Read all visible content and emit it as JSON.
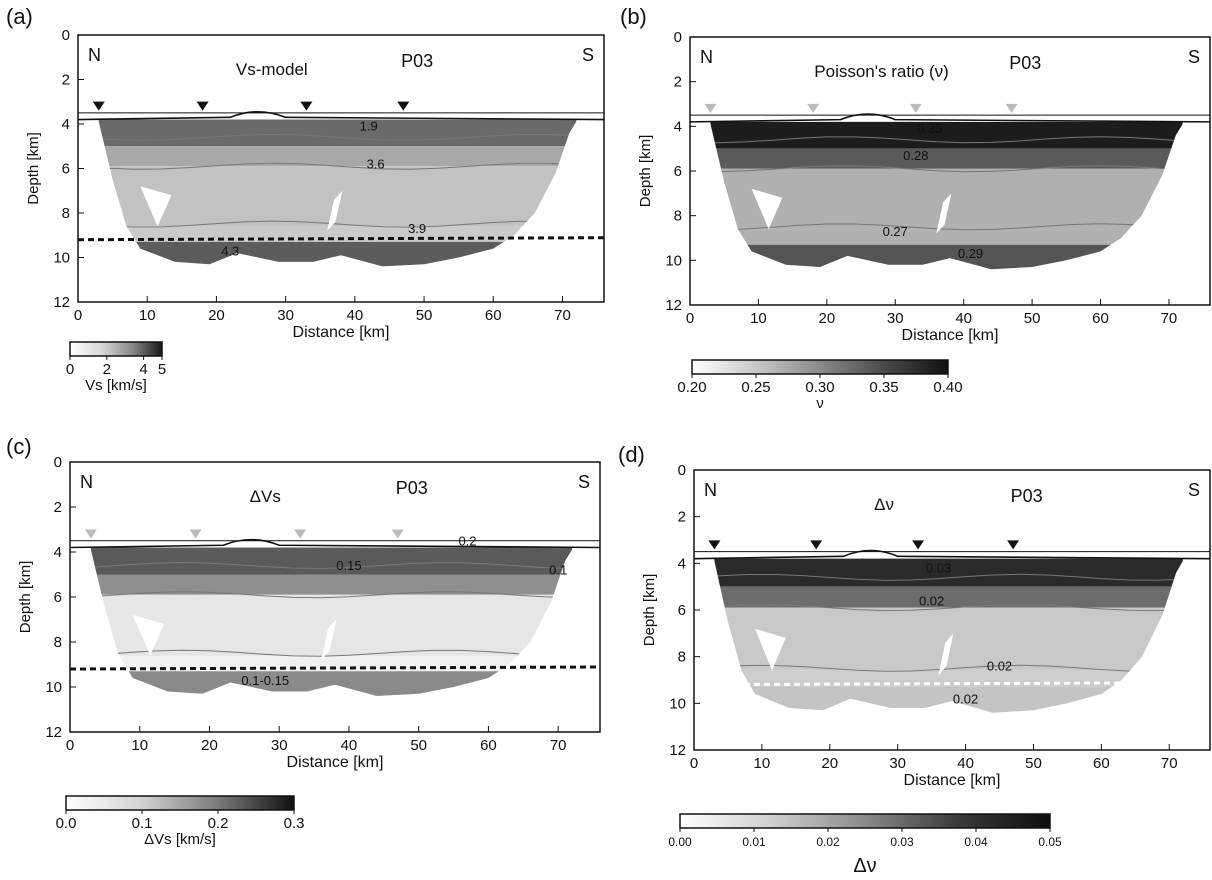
{
  "panels": [
    {
      "letter": "(a)",
      "title": "Vs-model",
      "profile": "P03",
      "north": "N",
      "south": "S",
      "xlabel": "Distance [km]",
      "ylabel": "Depth [km]",
      "xticks": [
        "0",
        "10",
        "20",
        "30",
        "40",
        "50",
        "60",
        "70"
      ],
      "yticks": [
        "0",
        "2",
        "4",
        "6",
        "8",
        "10",
        "12"
      ],
      "contours": [
        {
          "label": "1.9",
          "depth": 4.3,
          "dist": 42
        },
        {
          "label": "3.6",
          "depth": 6.0,
          "dist": 43
        },
        {
          "label": "3.9",
          "depth": 8.9,
          "dist": 49
        },
        {
          "label": "4.3",
          "depth": 9.9,
          "dist": 22
        }
      ],
      "boundary_depth": 9.2,
      "boundary_color": "#111111",
      "station_color": "#111111",
      "stations_km": [
        3,
        18,
        33,
        47
      ],
      "colorbar": {
        "label": "Vs [km/s]",
        "ticks": [
          "0",
          "2",
          "4",
          "5"
        ],
        "range": [
          0,
          5
        ]
      }
    },
    {
      "letter": "(b)",
      "title": "Poisson's ratio (ν)",
      "profile": "P03",
      "north": "N",
      "south": "S",
      "xlabel": "Distance [km]",
      "ylabel": "Depth [km]",
      "xticks": [
        "0",
        "10",
        "20",
        "30",
        "40",
        "50",
        "60",
        "70"
      ],
      "yticks": [
        "0",
        "2",
        "4",
        "6",
        "8",
        "10",
        "12"
      ],
      "contours": [
        {
          "label": "0.35",
          "depth": 4.3,
          "dist": 35
        },
        {
          "label": "0.28",
          "depth": 5.5,
          "dist": 33
        },
        {
          "label": "0.27",
          "depth": 8.9,
          "dist": 30
        },
        {
          "label": "0.29",
          "depth": 9.9,
          "dist": 41
        }
      ],
      "boundary_depth": null,
      "station_color": "#bbbbbb",
      "stations_km": [
        3,
        18,
        33,
        47
      ],
      "colorbar": {
        "label": "ν",
        "ticks": [
          "0.20",
          "0.25",
          "0.30",
          "0.35",
          "0.40"
        ],
        "range": [
          0.2,
          0.4
        ]
      }
    },
    {
      "letter": "(c)",
      "title": "ΔVs",
      "profile": "P03",
      "north": "N",
      "south": "S",
      "xlabel": "Distance [km]",
      "ylabel": "Depth [km]",
      "xticks": [
        "0",
        "10",
        "20",
        "30",
        "40",
        "50",
        "60",
        "70"
      ],
      "yticks": [
        "0",
        "2",
        "4",
        "6",
        "8",
        "10",
        "12"
      ],
      "contours": [
        {
          "label": "0.2",
          "depth": 3.7,
          "dist": 57
        },
        {
          "label": "0.15",
          "depth": 4.8,
          "dist": 40
        },
        {
          "label": "0.1",
          "depth": 5.0,
          "dist": 70
        },
        {
          "label": "0.1-0.15",
          "depth": 9.9,
          "dist": 28
        }
      ],
      "boundary_depth": 9.2,
      "boundary_color": "#111111",
      "station_color": "#bbbbbb",
      "stations_km": [
        3,
        18,
        33,
        47
      ],
      "colorbar": {
        "label": "ΔVs [km/s]",
        "ticks": [
          "0.0",
          "0.1",
          "0.2",
          "0.3"
        ],
        "range": [
          0,
          0.3
        ]
      }
    },
    {
      "letter": "(d)",
      "title": "Δν",
      "profile": "P03",
      "north": "N",
      "south": "S",
      "xlabel": "Distance [km]",
      "ylabel": "Depth [km]",
      "xticks": [
        "0",
        "10",
        "20",
        "30",
        "40",
        "50",
        "60",
        "70"
      ],
      "yticks": [
        "0",
        "2",
        "4",
        "6",
        "8",
        "10",
        "12"
      ],
      "contours": [
        {
          "label": "0.03",
          "depth": 4.4,
          "dist": 36
        },
        {
          "label": "0.02",
          "depth": 5.8,
          "dist": 35
        },
        {
          "label": "0.02",
          "depth": 8.6,
          "dist": 45
        },
        {
          "label": "0.02",
          "depth": 10.0,
          "dist": 40
        }
      ],
      "boundary_depth": 9.2,
      "boundary_color": "#ffffff",
      "station_color": "#111111",
      "stations_km": [
        3,
        18,
        33,
        47
      ],
      "colorbar": {
        "label": "Δν",
        "ticks": [
          "0.00",
          "0.01",
          "0.02",
          "0.03",
          "0.04",
          "0.05"
        ],
        "range": [
          0,
          0.05
        ]
      }
    }
  ]
}
